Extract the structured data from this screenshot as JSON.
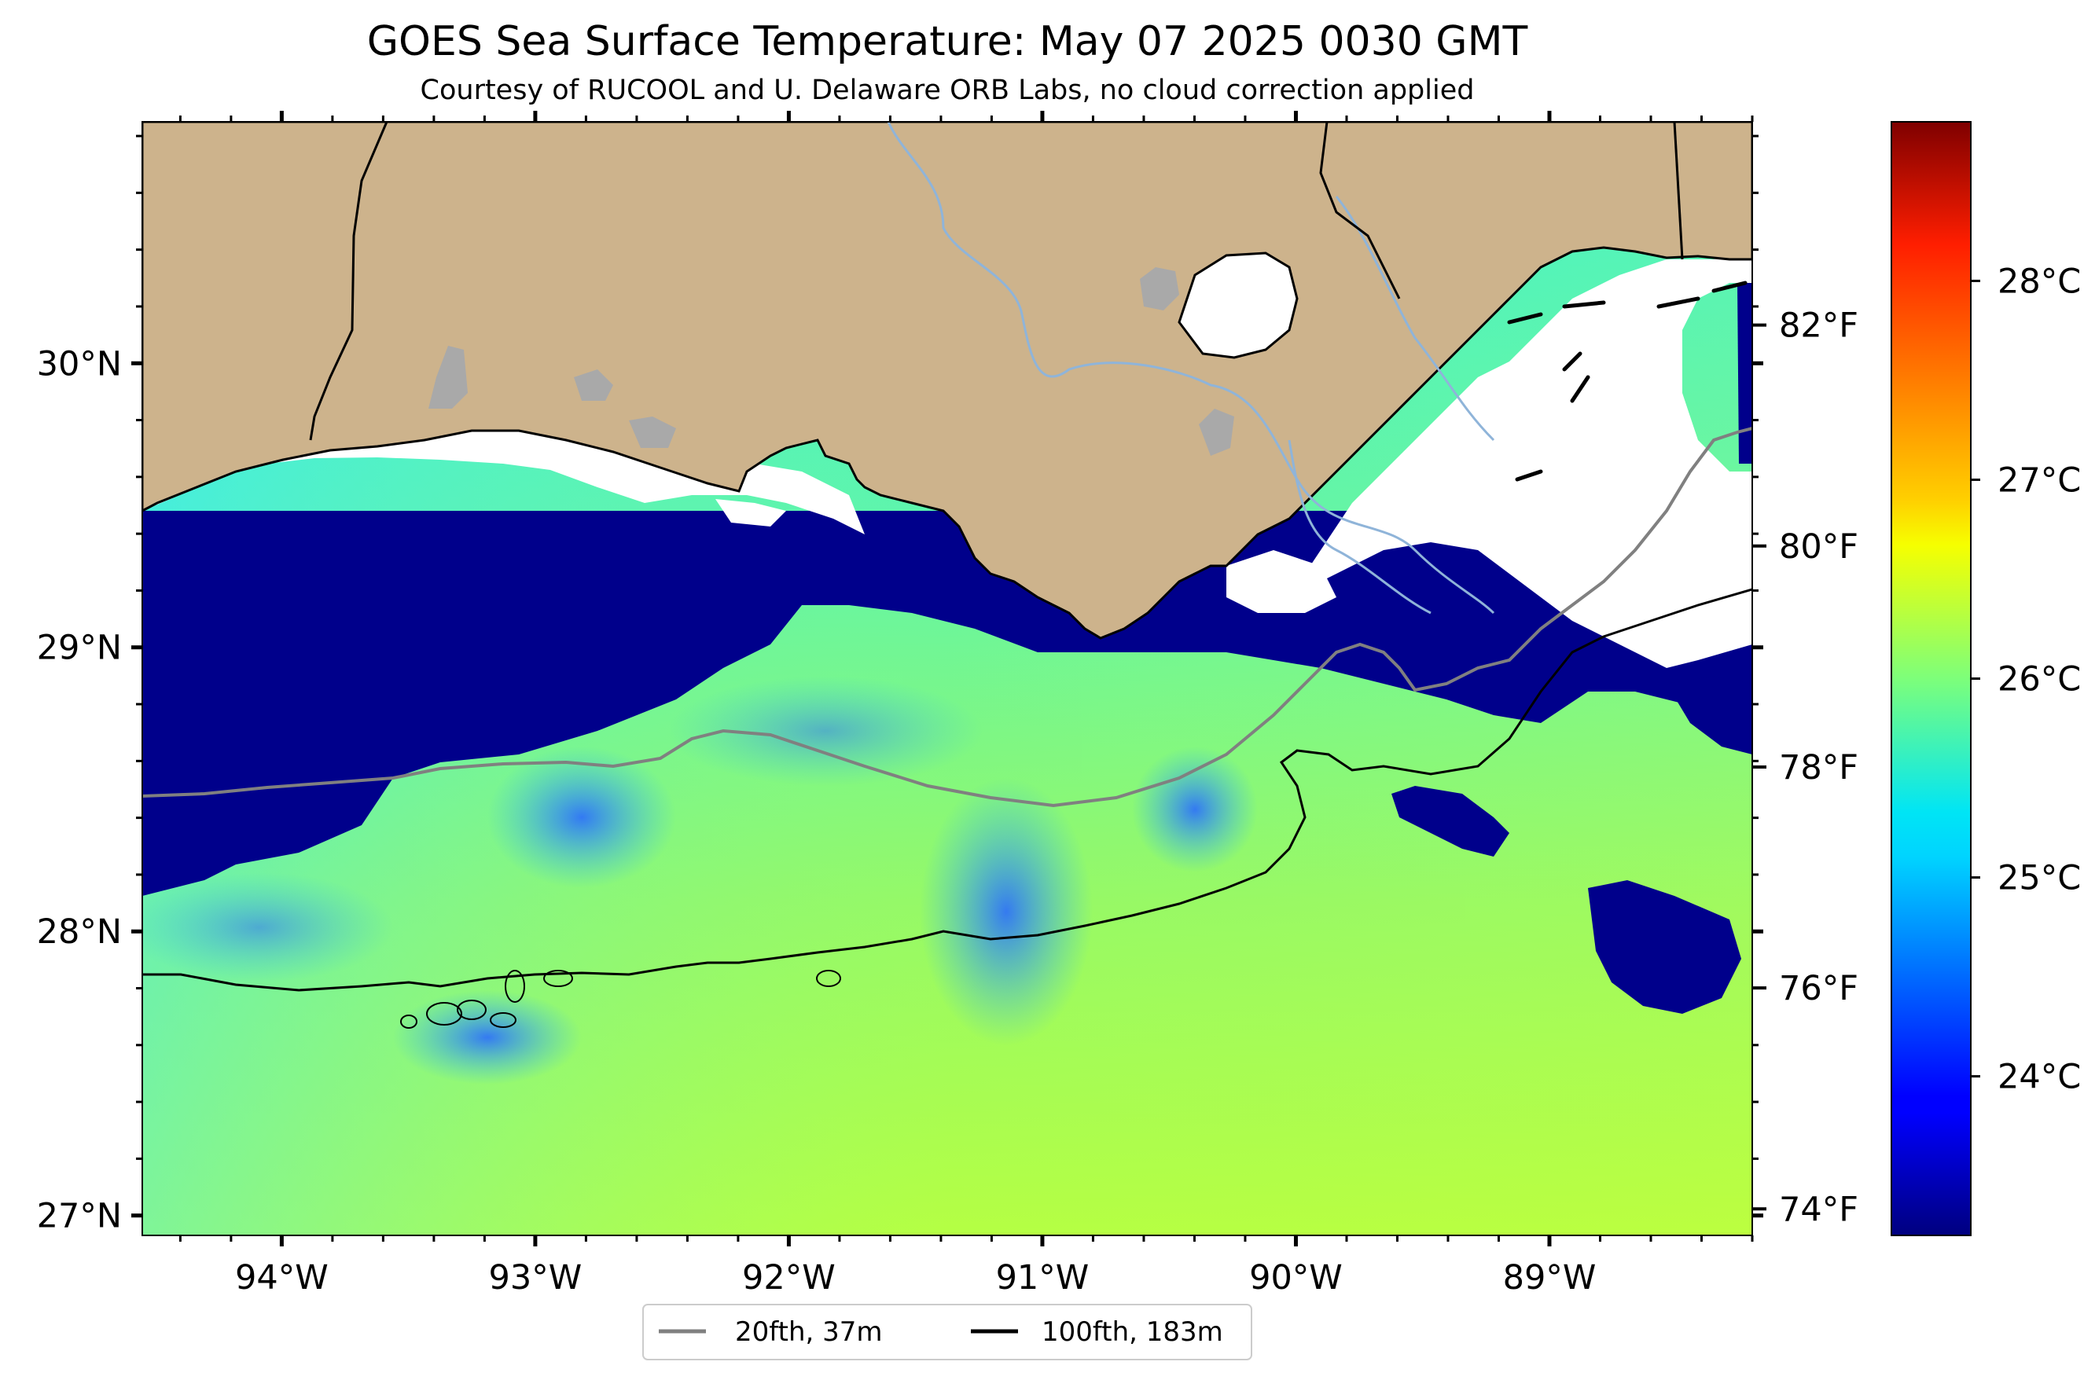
{
  "title": "GOES Sea Surface Temperature: May 07 2025 0030 GMT",
  "subtitle": "Courtesy of RUCOOL and U. Delaware ORB Labs, no cloud correction applied",
  "map": {
    "lon_range": [
      -94.55,
      -88.2
    ],
    "lat_range": [
      26.93,
      30.85
    ],
    "lat_ticks": [
      {
        "value": 30,
        "label": "30°N"
      },
      {
        "value": 29,
        "label": "29°N"
      },
      {
        "value": 28,
        "label": "28°N"
      },
      {
        "value": 27,
        "label": "27°N"
      }
    ],
    "lon_ticks": [
      {
        "value": -94,
        "label": "94°W"
      },
      {
        "value": -93,
        "label": "93°W"
      },
      {
        "value": -92,
        "label": "92°W"
      },
      {
        "value": -91,
        "label": "91°W"
      },
      {
        "value": -90,
        "label": "90°W"
      },
      {
        "value": -89,
        "label": "89°W"
      }
    ],
    "colors": {
      "land": "#cdb38c",
      "cloud_mask": "#ffffff",
      "lakes": "#a9a9a9",
      "rivers": "#8fb4d9",
      "coastline": "#000000",
      "isobath_20fth": "#808080",
      "isobath_100fth": "#000000"
    }
  },
  "colorbar": {
    "colormap": "jet",
    "celsius_range": [
      23.2,
      28.8
    ],
    "fahrenheit_ticks": [
      {
        "value": 74,
        "label": "74°F"
      },
      {
        "value": 76,
        "label": "76°F"
      },
      {
        "value": 78,
        "label": "78°F"
      },
      {
        "value": 80,
        "label": "80°F"
      },
      {
        "value": 82,
        "label": "82°F"
      }
    ],
    "celsius_ticks": [
      {
        "value": 24,
        "label": "24°C"
      },
      {
        "value": 25,
        "label": "25°C"
      },
      {
        "value": 26,
        "label": "26°C"
      },
      {
        "value": 27,
        "label": "27°C"
      },
      {
        "value": 28,
        "label": "28°C"
      }
    ]
  },
  "legend": {
    "items": [
      {
        "label": "20fth, 37m",
        "color": "#808080"
      },
      {
        "label": "100fth, 183m",
        "color": "#000000"
      }
    ]
  }
}
